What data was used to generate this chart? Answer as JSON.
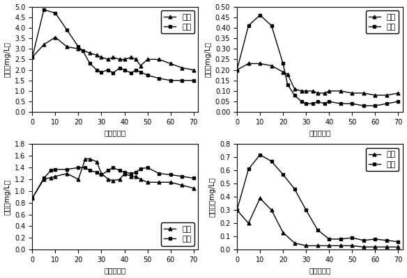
{
  "subplot1": {
    "ylabel": "总碗（mg/L）",
    "xlabel": "时间（天）",
    "ylim": [
      0,
      5
    ],
    "yticks": [
      0,
      0.5,
      1.0,
      1.5,
      2.0,
      2.5,
      3.0,
      3.5,
      4.0,
      4.5,
      5.0
    ],
    "xticks": [
      0,
      10,
      20,
      30,
      40,
      50,
      60,
      70
    ],
    "yuanshui_x": [
      0,
      5,
      10,
      15,
      20,
      25,
      28,
      30,
      33,
      35,
      38,
      40,
      43,
      45,
      47,
      50,
      55,
      60,
      65,
      70
    ],
    "yuanshui_y": [
      2.6,
      3.2,
      3.55,
      3.1,
      3.0,
      2.8,
      2.7,
      2.6,
      2.5,
      2.6,
      2.5,
      2.5,
      2.6,
      2.5,
      2.2,
      2.5,
      2.5,
      2.3,
      2.1,
      2.0
    ],
    "tianliao_x": [
      0,
      5,
      10,
      15,
      20,
      22,
      25,
      28,
      30,
      33,
      35,
      38,
      40,
      43,
      45,
      47,
      50,
      55,
      60,
      65,
      70
    ],
    "tianliao_y": [
      2.6,
      4.85,
      4.7,
      3.9,
      3.1,
      2.9,
      2.3,
      2.0,
      1.9,
      2.0,
      1.85,
      2.1,
      2.0,
      1.85,
      2.0,
      1.9,
      1.75,
      1.6,
      1.5,
      1.5,
      1.5
    ]
  },
  "subplot2": {
    "ylabel": "氨碗（mg/L）",
    "xlabel": "时间（天）",
    "ylim": [
      0,
      0.5
    ],
    "yticks": [
      0,
      0.05,
      0.1,
      0.15,
      0.2,
      0.25,
      0.3,
      0.35,
      0.4,
      0.45,
      0.5
    ],
    "xticks": [
      0,
      10,
      20,
      30,
      40,
      50,
      60,
      70
    ],
    "yuanshui_x": [
      0,
      5,
      10,
      15,
      20,
      22,
      25,
      28,
      30,
      33,
      35,
      38,
      40,
      45,
      50,
      55,
      60,
      65,
      70
    ],
    "yuanshui_y": [
      0.2,
      0.23,
      0.23,
      0.22,
      0.19,
      0.18,
      0.11,
      0.1,
      0.1,
      0.1,
      0.09,
      0.09,
      0.1,
      0.1,
      0.09,
      0.09,
      0.08,
      0.08,
      0.09
    ],
    "tianliao_x": [
      0,
      5,
      10,
      15,
      20,
      22,
      25,
      28,
      30,
      33,
      35,
      38,
      40,
      45,
      50,
      55,
      60,
      65,
      70
    ],
    "tianliao_y": [
      0.2,
      0.41,
      0.46,
      0.41,
      0.23,
      0.13,
      0.08,
      0.05,
      0.04,
      0.04,
      0.05,
      0.04,
      0.05,
      0.04,
      0.04,
      0.03,
      0.03,
      0.04,
      0.05
    ]
  },
  "subplot3": {
    "ylabel": "砖碗（mg/L）",
    "xlabel": "时间（天）",
    "ylim": [
      0,
      1.8
    ],
    "yticks": [
      0,
      0.2,
      0.4,
      0.6,
      0.8,
      1.0,
      1.2,
      1.4,
      1.6,
      1.8
    ],
    "xticks": [
      0,
      10,
      20,
      30,
      40,
      50,
      60,
      70
    ],
    "yuanshui_x": [
      0,
      5,
      8,
      10,
      15,
      20,
      23,
      25,
      28,
      30,
      33,
      35,
      38,
      40,
      43,
      45,
      47,
      50,
      55,
      60,
      65,
      70
    ],
    "yuanshui_y": [
      0.88,
      1.2,
      1.23,
      1.25,
      1.3,
      1.2,
      1.55,
      1.55,
      1.5,
      1.3,
      1.2,
      1.18,
      1.2,
      1.3,
      1.25,
      1.25,
      1.2,
      1.15,
      1.15,
      1.15,
      1.1,
      1.05
    ],
    "tianliao_x": [
      0,
      5,
      8,
      10,
      15,
      20,
      23,
      25,
      28,
      30,
      33,
      35,
      38,
      40,
      43,
      45,
      47,
      50,
      55,
      60,
      65,
      70
    ],
    "tianliao_y": [
      0.88,
      1.22,
      1.35,
      1.37,
      1.37,
      1.4,
      1.4,
      1.35,
      1.32,
      1.28,
      1.35,
      1.4,
      1.35,
      1.32,
      1.3,
      1.32,
      1.38,
      1.4,
      1.3,
      1.28,
      1.25,
      1.22
    ]
  },
  "subplot4": {
    "ylabel": "亚硫碗（mg/L）",
    "xlabel": "时间（天）",
    "ylim": [
      0,
      0.8
    ],
    "yticks": [
      0,
      0.1,
      0.2,
      0.3,
      0.4,
      0.5,
      0.6,
      0.7,
      0.8
    ],
    "xticks": [
      0,
      10,
      20,
      30,
      40,
      50,
      60,
      70
    ],
    "yuanshui_x": [
      0,
      5,
      10,
      15,
      20,
      25,
      30,
      35,
      40,
      45,
      50,
      55,
      60,
      65,
      70
    ],
    "yuanshui_y": [
      0.3,
      0.2,
      0.39,
      0.3,
      0.13,
      0.05,
      0.03,
      0.03,
      0.03,
      0.03,
      0.03,
      0.02,
      0.02,
      0.02,
      0.02
    ],
    "tianliao_x": [
      0,
      5,
      10,
      15,
      20,
      25,
      30,
      35,
      40,
      45,
      50,
      55,
      60,
      65,
      70
    ],
    "tianliao_y": [
      0.3,
      0.61,
      0.72,
      0.67,
      0.57,
      0.46,
      0.3,
      0.15,
      0.08,
      0.08,
      0.09,
      0.07,
      0.08,
      0.07,
      0.06
    ]
  },
  "legend_yuanshui": "原水",
  "legend_tianliao": "填料",
  "line_color": "#000000",
  "marker_yuanshui": "^",
  "marker_tianliao": "s",
  "markersize": 3.5,
  "linewidth": 1.0,
  "fontsize_label": 7.5,
  "fontsize_tick": 7,
  "fontsize_legend": 8
}
